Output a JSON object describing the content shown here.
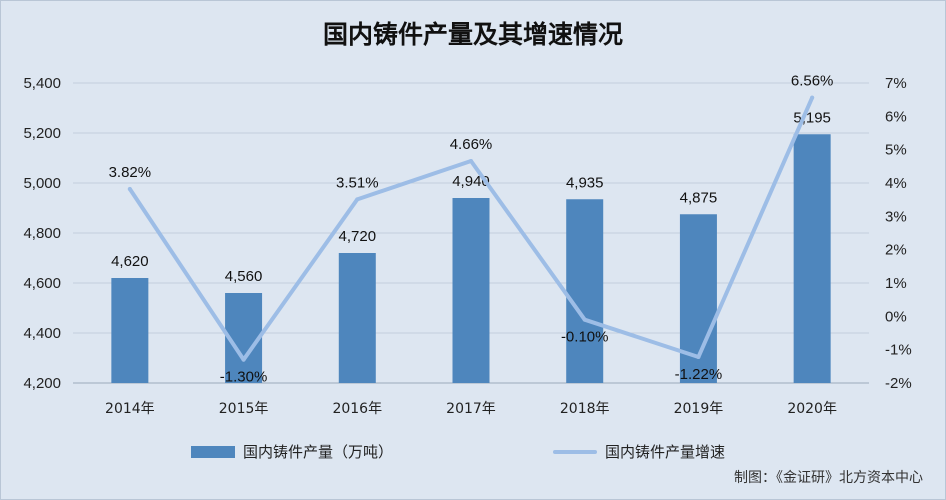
{
  "chart_data": {
    "type": "bar",
    "title": "国内铸件产量及其增速情况",
    "categories": [
      "2014年",
      "2015年",
      "2016年",
      "2017年",
      "2018年",
      "2019年",
      "2020年"
    ],
    "series": [
      {
        "name": "国内铸件产量（万吨）",
        "type": "bar",
        "axis": "left",
        "values": [
          4620,
          4560,
          4720,
          4940,
          4935,
          4875,
          5195
        ],
        "labels": [
          "4,620",
          "4,560",
          "4,720",
          "4,940",
          "4,935",
          "4,875",
          "5,195"
        ],
        "color": "#4e86bd"
      },
      {
        "name": "国内铸件产量增速",
        "type": "line",
        "axis": "right",
        "values": [
          3.82,
          -1.3,
          3.51,
          4.66,
          -0.1,
          -1.22,
          6.56
        ],
        "labels": [
          "3.82%",
          "-1.30%",
          "3.51%",
          "4.66%",
          "-0.10%",
          "-1.22%",
          "6.56%"
        ],
        "color": "#9dbde6"
      }
    ],
    "y_left": {
      "ylim": [
        4200,
        5400
      ],
      "ticks": [
        4200,
        4400,
        4600,
        4800,
        5000,
        5200,
        5400
      ],
      "tick_labels": [
        "4,200",
        "4,400",
        "4,600",
        "4,800",
        "5,000",
        "5,200",
        "5,400"
      ]
    },
    "y_right": {
      "ylim": [
        -2,
        7
      ],
      "ticks": [
        -2,
        -1,
        0,
        1,
        2,
        3,
        4,
        5,
        6,
        7
      ],
      "tick_labels": [
        "-2%",
        "-1%",
        "0%",
        "1%",
        "2%",
        "3%",
        "4%",
        "5%",
        "6%",
        "7%"
      ]
    },
    "grid": true,
    "legend": "bottom"
  },
  "source": "制图：《金证研》北方资本中心"
}
